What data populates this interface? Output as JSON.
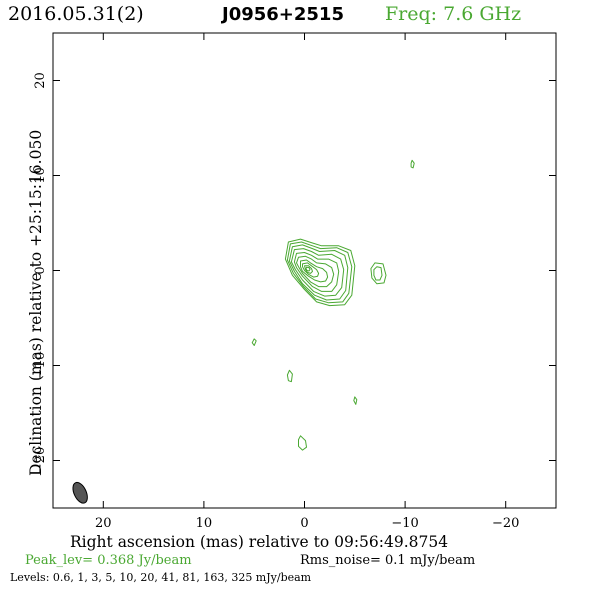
{
  "header": {
    "date": "2016.05.31(2)",
    "source": "J0956+2515",
    "freq": "Freq: 7.6 GHz"
  },
  "footer": {
    "peak": "Peak_lev=  0.368 Jy/beam",
    "rms": "Rms_noise=  0.1 mJy/beam",
    "levels": "Levels: 0.6,    1,    3,    5,   10,   20,   41,   81,  163,  325 mJy/beam"
  },
  "colors": {
    "contour": "#4aa832",
    "beam": "#555555",
    "axes": "#000000"
  },
  "chart_data": {
    "type": "contour",
    "xlabel": "Right ascension (mas) relative to 09:56:49.8754",
    "ylabel": "Declination (mas) relative to +25:15:16.050",
    "xlim": [
      25,
      -25
    ],
    "ylim": [
      -25,
      25
    ],
    "xticks": [
      20,
      10,
      0,
      -10,
      -20
    ],
    "yticks": [
      20,
      10,
      0,
      -10,
      -20
    ],
    "xticklabels": [
      "20",
      "10",
      "0",
      "−10",
      "−20"
    ],
    "yticklabels": [
      "20",
      "10",
      "0",
      "−10",
      "−20"
    ],
    "peak_jy_per_beam": 0.368,
    "rms_mjy_per_beam": 0.1,
    "levels_mjy_per_beam": [
      0.6,
      1,
      3,
      5,
      10,
      20,
      41,
      81,
      163,
      325
    ],
    "core": {
      "x": -0.3,
      "y": 0.2
    },
    "contours": [
      {
        "points": [
          [
            1.6,
            3.0
          ],
          [
            0.4,
            3.3
          ],
          [
            -0.8,
            2.9
          ],
          [
            -1.7,
            2.6
          ],
          [
            -3.4,
            2.6
          ],
          [
            -4.6,
            2.1
          ],
          [
            -5.0,
            0.5
          ],
          [
            -4.7,
            -2.6
          ],
          [
            -4.0,
            -3.6
          ],
          [
            -2.5,
            -3.7
          ],
          [
            -1.2,
            -3.3
          ],
          [
            0.0,
            -2.0
          ],
          [
            1.2,
            -0.5
          ],
          [
            1.9,
            1.2
          ]
        ]
      },
      {
        "points": [
          [
            1.4,
            2.8
          ],
          [
            0.3,
            3.0
          ],
          [
            -0.8,
            2.6
          ],
          [
            -1.6,
            2.3
          ],
          [
            -3.2,
            2.4
          ],
          [
            -4.3,
            1.9
          ],
          [
            -4.7,
            0.4
          ],
          [
            -4.4,
            -2.4
          ],
          [
            -3.8,
            -3.3
          ],
          [
            -2.4,
            -3.4
          ],
          [
            -1.1,
            -3.0
          ],
          [
            0.1,
            -1.7
          ],
          [
            1.1,
            -0.3
          ],
          [
            1.7,
            1.1
          ]
        ]
      },
      {
        "points": [
          [
            1.2,
            2.5
          ],
          [
            0.2,
            2.7
          ],
          [
            -0.8,
            2.3
          ],
          [
            -1.5,
            2.0
          ],
          [
            -3.0,
            2.1
          ],
          [
            -4.0,
            1.6
          ],
          [
            -4.3,
            0.3
          ],
          [
            -4.1,
            -2.1
          ],
          [
            -3.5,
            -3.0
          ],
          [
            -2.2,
            -3.1
          ],
          [
            -1.0,
            -2.6
          ],
          [
            0.2,
            -1.4
          ],
          [
            1.0,
            -0.1
          ],
          [
            1.5,
            1.0
          ]
        ]
      },
      {
        "points": [
          [
            1.0,
            2.2
          ],
          [
            0.1,
            2.3
          ],
          [
            -0.7,
            2.0
          ],
          [
            -1.4,
            1.6
          ],
          [
            -2.7,
            1.7
          ],
          [
            -3.6,
            1.2
          ],
          [
            -3.9,
            0.1
          ],
          [
            -3.7,
            -1.8
          ],
          [
            -3.1,
            -2.6
          ],
          [
            -2.0,
            -2.7
          ],
          [
            -0.9,
            -2.2
          ],
          [
            0.2,
            -1.0
          ],
          [
            0.9,
            0.1
          ],
          [
            1.3,
            0.9
          ]
        ]
      },
      {
        "points": [
          [
            0.8,
            1.8
          ],
          [
            0.0,
            1.9
          ],
          [
            -0.7,
            1.6
          ],
          [
            -1.3,
            1.2
          ],
          [
            -2.4,
            1.2
          ],
          [
            -3.2,
            0.8
          ],
          [
            -3.4,
            -0.1
          ],
          [
            -3.2,
            -1.5
          ],
          [
            -2.7,
            -2.2
          ],
          [
            -1.7,
            -2.2
          ],
          [
            -0.8,
            -1.7
          ],
          [
            0.2,
            -0.6
          ],
          [
            0.8,
            0.3
          ],
          [
            1.0,
            0.9
          ]
        ]
      },
      {
        "points": [
          [
            0.6,
            1.4
          ],
          [
            -0.1,
            1.5
          ],
          [
            -0.7,
            1.2
          ],
          [
            -1.2,
            0.8
          ],
          [
            -2.1,
            0.7
          ],
          [
            -2.7,
            0.3
          ],
          [
            -2.9,
            -0.4
          ],
          [
            -2.7,
            -1.2
          ],
          [
            -2.2,
            -1.7
          ],
          [
            -1.4,
            -1.7
          ],
          [
            -0.6,
            -1.2
          ],
          [
            0.2,
            -0.3
          ],
          [
            0.6,
            0.4
          ],
          [
            0.8,
            0.8
          ]
        ]
      },
      {
        "points": [
          [
            0.4,
            1.0
          ],
          [
            -0.2,
            1.1
          ],
          [
            -0.6,
            0.8
          ],
          [
            -1.2,
            0.4
          ],
          [
            -1.8,
            0.2
          ],
          [
            -2.2,
            -0.2
          ],
          [
            -2.3,
            -0.7
          ],
          [
            -2.1,
            -1.1
          ],
          [
            -1.6,
            -1.2
          ],
          [
            -1.0,
            -1.0
          ],
          [
            -0.4,
            -0.6
          ],
          [
            0.2,
            -0.1
          ],
          [
            0.4,
            0.4
          ]
        ]
      },
      {
        "points": [
          [
            0.2,
            0.7
          ],
          [
            -0.3,
            0.8
          ],
          [
            -0.7,
            0.5
          ],
          [
            -1.2,
            0.1
          ],
          [
            -1.4,
            -0.3
          ],
          [
            -1.3,
            -0.6
          ],
          [
            -0.9,
            -0.7
          ],
          [
            -0.4,
            -0.4
          ],
          [
            0.0,
            0.0
          ],
          [
            0.2,
            0.4
          ]
        ]
      },
      {
        "points": [
          [
            0.0,
            0.5
          ],
          [
            -0.4,
            0.5
          ],
          [
            -0.7,
            0.2
          ],
          [
            -0.8,
            -0.1
          ],
          [
            -0.6,
            -0.3
          ],
          [
            -0.3,
            -0.2
          ],
          [
            -0.1,
            0.1
          ]
        ]
      },
      {
        "points": [
          [
            -0.2,
            0.35
          ],
          [
            -0.45,
            0.3
          ],
          [
            -0.55,
            0.1
          ],
          [
            -0.45,
            -0.05
          ],
          [
            -0.25,
            0.0
          ],
          [
            -0.15,
            0.2
          ]
        ]
      },
      {
        "points": [
          [
            -7.0,
            0.8
          ],
          [
            -7.8,
            0.7
          ],
          [
            -8.1,
            -0.5
          ],
          [
            -7.9,
            -1.3
          ],
          [
            -7.2,
            -1.4
          ],
          [
            -6.7,
            -0.8
          ],
          [
            -6.6,
            0.2
          ]
        ]
      },
      {
        "points": [
          [
            -7.2,
            0.4
          ],
          [
            -7.6,
            0.3
          ],
          [
            -7.7,
            -0.5
          ],
          [
            -7.5,
            -1.0
          ],
          [
            -7.1,
            -1.0
          ],
          [
            -6.9,
            -0.5
          ],
          [
            -6.9,
            0.1
          ]
        ]
      },
      {
        "points": [
          [
            -10.7,
            11.6
          ],
          [
            -10.9,
            11.3
          ],
          [
            -10.8,
            10.8
          ],
          [
            -10.6,
            10.9
          ],
          [
            -10.6,
            11.3
          ]
        ]
      },
      {
        "points": [
          [
            5.0,
            -7.2
          ],
          [
            4.8,
            -7.4
          ],
          [
            5.0,
            -7.9
          ],
          [
            5.2,
            -7.6
          ]
        ]
      },
      {
        "points": [
          [
            1.5,
            -10.5
          ],
          [
            1.2,
            -10.9
          ],
          [
            1.3,
            -11.7
          ],
          [
            1.6,
            -11.6
          ],
          [
            1.7,
            -11.0
          ]
        ]
      },
      {
        "points": [
          [
            -5.0,
            -13.3
          ],
          [
            -5.2,
            -13.6
          ],
          [
            -5.1,
            -14.1
          ],
          [
            -4.9,
            -13.7
          ]
        ]
      },
      {
        "points": [
          [
            0.4,
            -17.4
          ],
          [
            -0.1,
            -17.9
          ],
          [
            -0.2,
            -18.6
          ],
          [
            0.2,
            -18.9
          ],
          [
            0.6,
            -18.5
          ],
          [
            0.6,
            -17.8
          ]
        ]
      }
    ],
    "beam": {
      "x": 22.3,
      "y": -23.4,
      "major_mas": 2.2,
      "minor_mas": 1.2,
      "pa_deg": -25
    }
  }
}
